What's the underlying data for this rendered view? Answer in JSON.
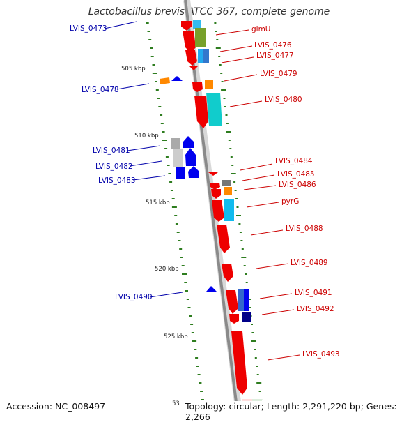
{
  "title": "Lactobacillus brevis ATCC 367, complete genome",
  "footer": {
    "accession": "Accession: NC_008497",
    "summary": "Topology: circular; Length: 2,291,220 bp; Genes: 2,266"
  },
  "colors": {
    "left_labels": "#0000aa",
    "right_labels": "#cc0000",
    "backbone": "#888888",
    "gc_ticks": "#2e7d1f"
  },
  "ticks": [
    "505 kbp",
    "510 kbp",
    "515 kbp",
    "520 kbp",
    "525 kbp",
    "53"
  ],
  "left_labels": [
    "LVIS_0473",
    "LVIS_0478",
    "LVIS_0481",
    "LVIS_0482",
    "LVIS_0483",
    "LVIS_0490"
  ],
  "right_labels": [
    "glmU",
    "LVIS_0476",
    "LVIS_0477",
    "LVIS_0479",
    "LVIS_0480",
    "LVIS_0484",
    "LVIS_0485",
    "LVIS_0486",
    "pyrG",
    "LVIS_0488",
    "LVIS_0489",
    "LVIS_0491",
    "LVIS_0492",
    "LVIS_0493"
  ]
}
